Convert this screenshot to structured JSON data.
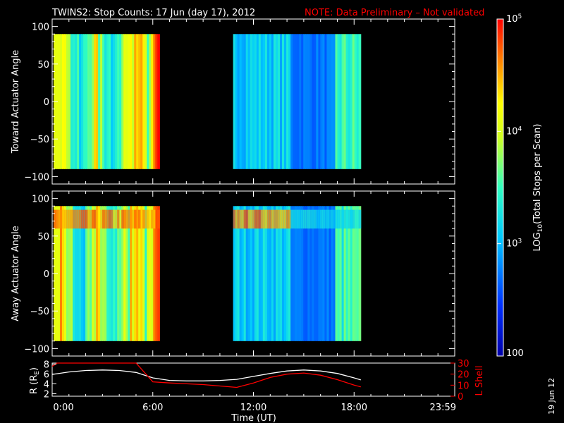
{
  "header": {
    "title": "TWINS2: Stop Counts: 17 Jun (day  17), 2012",
    "note": "NOTE: Data Preliminary – Not validated",
    "note_color": "#ff0000"
  },
  "footer": {
    "date_stamp": "19 Jun 12"
  },
  "chart_data": [
    {
      "type": "heatmap",
      "panel": "toward",
      "ylabel": "Toward Actuator Angle",
      "ylim": [
        -110,
        110
      ],
      "yticks": [
        "100",
        "50",
        "0",
        "−50",
        "−100"
      ],
      "xlim": [
        0,
        24
      ],
      "x_ranges_with_data_hours": [
        [
          0.0,
          6.4
        ],
        [
          10.7,
          18.4
        ]
      ],
      "y_range_with_data": [
        -90,
        90
      ]
    },
    {
      "type": "heatmap",
      "panel": "away",
      "ylabel": "Away Actuator Angle",
      "ylim": [
        -110,
        110
      ],
      "yticks": [
        "100",
        "50",
        "0",
        "−50",
        "−100"
      ],
      "xlim": [
        0,
        24
      ],
      "x_ranges_with_data_hours": [
        [
          0.0,
          6.4
        ],
        [
          10.7,
          18.4
        ]
      ],
      "y_range_with_data": [
        -90,
        90
      ]
    },
    {
      "type": "line",
      "panel": "orbit",
      "xlabel": "Time (UT)",
      "xticks": [
        "0:00",
        "6:00",
        "12:00",
        "18:00",
        "23:59"
      ],
      "xlim": [
        0,
        24
      ],
      "ylabel_left": "R (R",
      "ylabel_left_sub": "E",
      "ylabel_left_close": ")",
      "yticks_left": [
        "8",
        "6",
        "4",
        "2"
      ],
      "ylim_left": [
        1.5,
        8.2
      ],
      "ylabel_right": "L Shell",
      "yticks_right": [
        "30",
        "20",
        "10",
        "0"
      ],
      "ylim_right": [
        0,
        30
      ],
      "series": [
        {
          "name": "R (RE)",
          "axis": "left",
          "color": "#ffffff",
          "x": [
            0,
            1,
            2,
            3,
            4,
            5,
            6,
            7,
            8,
            9,
            10,
            11,
            12,
            13,
            14,
            15,
            16,
            17,
            18,
            18.4
          ],
          "y": [
            5.9,
            6.4,
            6.7,
            6.8,
            6.7,
            6.3,
            5.2,
            4.7,
            4.6,
            4.6,
            4.7,
            4.9,
            5.5,
            6.1,
            6.6,
            6.8,
            6.6,
            6.1,
            5.2,
            4.8
          ]
        },
        {
          "name": "L Shell",
          "axis": "right",
          "color": "#ff0000",
          "x": [
            0,
            0.3,
            5.0,
            6.0,
            7,
            9,
            11,
            12,
            13,
            14,
            15,
            16,
            17,
            18,
            18.4
          ],
          "y": [
            27,
            30,
            30,
            13,
            12,
            10.5,
            8,
            12,
            17,
            20,
            21,
            19,
            15,
            10,
            8.5
          ]
        }
      ]
    }
  ],
  "colorbar": {
    "label_prefix": "LOG",
    "label_sub": "10",
    "label_rest": "(Total Stops per Scan)",
    "ticks": [
      {
        "base": "10",
        "exp": "5"
      },
      {
        "base": "10",
        "exp": "4"
      },
      {
        "base": "10",
        "exp": "3"
      }
    ],
    "bottom_label": "100",
    "range": [
      100,
      100000
    ]
  }
}
